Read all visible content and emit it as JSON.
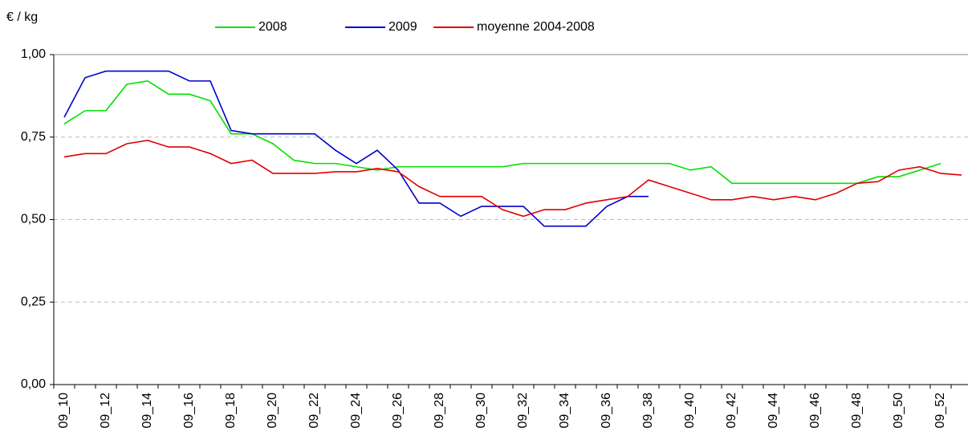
{
  "chart_data": {
    "type": "line",
    "y_label": "€ / kg",
    "categories": [
      "09_10",
      null,
      "09_12",
      null,
      "09_14",
      null,
      "09_16",
      null,
      "09_18",
      null,
      "09_20",
      null,
      "09_22",
      null,
      "09_24",
      null,
      "09_26",
      null,
      "09_28",
      null,
      "09_30",
      null,
      "09_32",
      null,
      "09_34",
      null,
      "09_36",
      null,
      "09_38",
      null,
      "09_40",
      null,
      "09_42",
      null,
      "09_44",
      null,
      "09_46",
      null,
      "09_48",
      null,
      "09_50",
      null,
      "09_52",
      null
    ],
    "series": [
      {
        "name": "2008",
        "color": "#00e000",
        "values": [
          0.79,
          0.83,
          0.83,
          0.91,
          0.92,
          0.88,
          0.88,
          0.86,
          0.76,
          0.76,
          0.73,
          0.68,
          0.67,
          0.67,
          0.66,
          0.65,
          0.66,
          0.66,
          0.66,
          0.66,
          0.66,
          0.66,
          0.67,
          0.67,
          0.67,
          0.67,
          0.67,
          0.67,
          0.67,
          0.67,
          0.65,
          0.66,
          0.61,
          0.61,
          0.61,
          0.61,
          0.61,
          0.61,
          0.61,
          0.63,
          0.63,
          0.65,
          0.67,
          null
        ]
      },
      {
        "name": "2009",
        "color": "#0000cc",
        "values": [
          0.81,
          0.93,
          0.95,
          0.95,
          0.95,
          0.95,
          0.92,
          0.92,
          0.77,
          0.76,
          0.76,
          0.76,
          0.76,
          0.71,
          0.67,
          0.71,
          0.65,
          0.55,
          0.55,
          0.51,
          0.54,
          0.54,
          0.54,
          0.48,
          0.48,
          0.48,
          0.54,
          0.57,
          0.57,
          null,
          null,
          null,
          null,
          null,
          null,
          null,
          null,
          null,
          null,
          null,
          null,
          null,
          null,
          null
        ]
      },
      {
        "name": "moyenne 2004-2008",
        "color": "#e00000",
        "values": [
          0.69,
          0.7,
          0.7,
          0.73,
          0.74,
          0.72,
          0.72,
          0.7,
          0.67,
          0.68,
          0.64,
          0.64,
          0.64,
          0.645,
          0.645,
          0.655,
          0.645,
          0.6,
          0.57,
          0.57,
          0.57,
          0.53,
          0.51,
          0.53,
          0.53,
          0.55,
          0.56,
          0.57,
          0.62,
          0.6,
          0.58,
          0.56,
          0.56,
          0.57,
          0.56,
          0.57,
          0.56,
          0.58,
          0.61,
          0.615,
          0.65,
          0.66,
          0.64,
          0.635
        ]
      }
    ],
    "ylim": [
      0,
      1
    ],
    "yticks": [
      {
        "value": 0,
        "label": "0,00"
      },
      {
        "value": 0.25,
        "label": "0,25"
      },
      {
        "value": 0.5,
        "label": "0,50"
      },
      {
        "value": 0.75,
        "label": "0,75"
      },
      {
        "value": 1,
        "label": "1,00"
      }
    ],
    "grid": true,
    "legend": "top"
  }
}
